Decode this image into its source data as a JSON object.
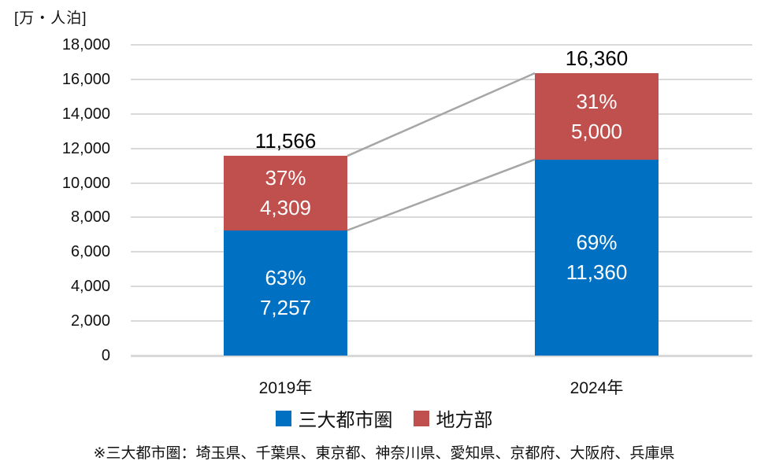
{
  "chart_data": {
    "type": "bar",
    "stacked": true,
    "unit_label": "[万・人泊]",
    "categories": [
      "2019年",
      "2024年"
    ],
    "series": [
      {
        "name": "三大都市圏",
        "color": "#0071c2",
        "values": [
          7257,
          11360
        ],
        "pct_labels": [
          "63%",
          "69%"
        ],
        "value_labels": [
          "7,257",
          "11,360"
        ]
      },
      {
        "name": "地方部",
        "color": "#c0504d",
        "values": [
          4309,
          5000
        ],
        "pct_labels": [
          "37%",
          "31%"
        ],
        "value_labels": [
          "4,309",
          "5,000"
        ]
      }
    ],
    "totals": [
      11566,
      16360
    ],
    "total_labels": [
      "11,566",
      "16,360"
    ],
    "ylim": [
      0,
      18000
    ],
    "ytick_step": 2000,
    "ytick_labels": [
      "0",
      "2,000",
      "4,000",
      "6,000",
      "8,000",
      "10,000",
      "12,000",
      "14,000",
      "16,000",
      "18,000"
    ],
    "grid": true,
    "legend_position": "bottom",
    "colors": {
      "gridline": "#d9d9d9",
      "connector": "#a6a6a6",
      "bar_label_text": "#ffffff",
      "axis_text": "#111111"
    }
  },
  "legend": {
    "items": [
      {
        "label": "三大都市圏",
        "color": "#0071c2"
      },
      {
        "label": "地方部",
        "color": "#c0504d"
      }
    ]
  },
  "footnote": "※三大都市圏：埼玉県、千葉県、東京都、神奈川県、愛知県、京都府、大阪府、兵庫県"
}
